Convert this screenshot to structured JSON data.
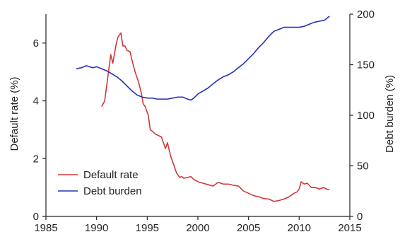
{
  "chart_data": {
    "type": "line",
    "title": "",
    "xlabel": "",
    "ylabel": "Default rate (%)",
    "y2label": "Debt burden (%)",
    "xlim": [
      1985,
      2015
    ],
    "ylim": [
      0,
      7
    ],
    "y2lim": [
      0,
      200
    ],
    "xticks": [
      1985,
      1990,
      1995,
      2000,
      2005,
      2010,
      2015
    ],
    "yticks": [
      0,
      2,
      4,
      6
    ],
    "y2ticks": [
      0,
      50,
      100,
      150,
      200
    ],
    "grid": false,
    "legend": "bottom-left",
    "series": [
      {
        "name": "Default rate",
        "axis": "left",
        "color": "#d0383a",
        "x": [
          1990.5,
          1990.8,
          1991.1,
          1991.4,
          1991.6,
          1991.9,
          1992.1,
          1992.4,
          1992.6,
          1992.8,
          1993.0,
          1993.3,
          1993.5,
          1993.8,
          1994.1,
          1994.4,
          1994.6,
          1994.8,
          1995.1,
          1995.3,
          1995.5,
          1995.8,
          1996.1,
          1996.4,
          1996.8,
          1997.0,
          1997.3,
          1997.6,
          1997.9,
          1998.2,
          1998.4,
          1998.6,
          1999.0,
          1999.3,
          1999.6,
          2000.0,
          2000.5,
          2001.0,
          2001.5,
          2002.0,
          2002.5,
          2003.0,
          2003.5,
          2004.0,
          2004.5,
          2005.0,
          2005.5,
          2006.0,
          2006.5,
          2007.0,
          2007.5,
          2008.0,
          2008.5,
          2009.0,
          2009.5,
          2009.8,
          2010.0,
          2010.2,
          2010.5,
          2010.8,
          2011.2,
          2011.6,
          2012.0,
          2012.4,
          2012.8,
          2013.0
        ],
        "values": [
          3.8,
          4.0,
          4.8,
          5.6,
          5.3,
          5.9,
          6.2,
          6.35,
          5.9,
          5.9,
          5.75,
          5.7,
          5.4,
          5.0,
          4.7,
          4.3,
          3.9,
          3.8,
          3.5,
          3.0,
          2.95,
          2.85,
          2.8,
          2.75,
          2.35,
          2.55,
          2.1,
          1.8,
          1.5,
          1.35,
          1.38,
          1.32,
          1.35,
          1.38,
          1.28,
          1.2,
          1.15,
          1.1,
          1.05,
          1.18,
          1.12,
          1.12,
          1.08,
          1.05,
          0.88,
          0.8,
          0.72,
          0.68,
          0.62,
          0.6,
          0.52,
          0.55,
          0.6,
          0.68,
          0.8,
          0.85,
          0.95,
          1.2,
          1.12,
          1.15,
          1.0,
          1.0,
          0.95,
          1.0,
          0.93,
          0.93
        ]
      },
      {
        "name": "Debt burden",
        "axis": "right",
        "color": "#2431b8",
        "x": [
          1988.0,
          1988.5,
          1989.0,
          1989.3,
          1989.6,
          1990.0,
          1990.5,
          1991.0,
          1991.5,
          1992.0,
          1992.5,
          1993.0,
          1993.5,
          1994.0,
          1994.5,
          1995.0,
          1995.5,
          1996.0,
          1996.5,
          1997.0,
          1997.5,
          1998.0,
          1998.5,
          1999.0,
          1999.3,
          1999.6,
          2000.0,
          2000.5,
          2001.0,
          2001.5,
          2002.0,
          2002.5,
          2003.0,
          2003.5,
          2004.0,
          2004.5,
          2005.0,
          2005.5,
          2006.0,
          2006.5,
          2007.0,
          2007.5,
          2008.0,
          2008.5,
          2009.0,
          2009.5,
          2010.0,
          2010.5,
          2011.0,
          2011.5,
          2012.0,
          2012.5,
          2013.0
        ],
        "values": [
          146,
          147,
          149,
          148,
          147,
          148,
          146,
          144,
          141,
          138,
          134,
          129,
          124,
          120,
          118,
          117,
          117,
          116,
          116,
          116,
          117,
          118,
          118,
          116,
          115,
          117,
          121,
          124,
          127,
          131,
          135,
          138,
          140,
          143,
          147,
          151,
          156,
          161,
          167,
          172,
          178,
          183,
          185,
          187,
          187,
          187,
          187,
          188,
          190,
          192,
          193,
          194,
          198
        ]
      }
    ]
  }
}
